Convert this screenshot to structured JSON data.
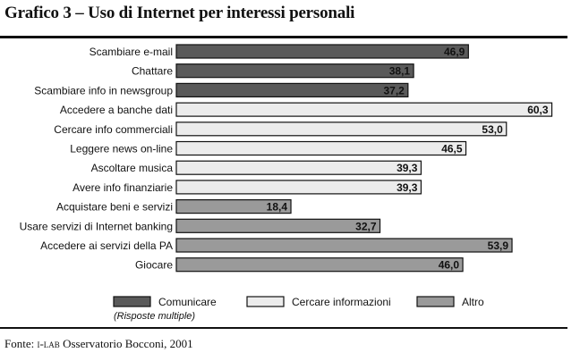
{
  "title": "Grafico 3 – Uso di Internet per interessi personali",
  "source_prefix": "Fonte: ",
  "source_org": "i-lab",
  "source_rest": " Osservatorio Bocconi, 2001",
  "colors": {
    "Comunicare": "#5a5a5a",
    "Cercare informazioni": "#ececec",
    "Altro": "#9a9a9a"
  },
  "chart_data": {
    "type": "bar",
    "orientation": "horizontal",
    "title": "",
    "xlabel": "",
    "ylabel": "",
    "xlim": [
      0,
      62
    ],
    "grid": false,
    "legend_position": "bottom",
    "legend_note": "(Risposte multiple)",
    "legend": [
      "Comunicare",
      "Cercare informazioni",
      "Altro"
    ],
    "categories": [
      "Scambiare e-mail",
      "Chattare",
      "Scambiare info in newsgroup",
      "Accedere a banche dati",
      "Cercare info commerciali",
      "Leggere news on-line",
      "Ascoltare musica",
      "Avere info finanziarie",
      "Acquistare beni e servizi",
      "Usare servizi di Internet banking",
      "Accedere ai servizi della PA",
      "Giocare"
    ],
    "values": [
      46.9,
      38.1,
      37.2,
      60.3,
      53.0,
      46.5,
      39.3,
      39.3,
      18.4,
      32.7,
      53.9,
      46.0
    ],
    "value_labels": [
      "46,9",
      "38,1",
      "37,2",
      "60,3",
      "53,0",
      "46,5",
      "39,3",
      "39,3",
      "18,4",
      "32,7",
      "53,9",
      "46,0"
    ],
    "groups": [
      "Comunicare",
      "Comunicare",
      "Comunicare",
      "Cercare informazioni",
      "Cercare informazioni",
      "Cercare informazioni",
      "Cercare informazioni",
      "Cercare informazioni",
      "Altro",
      "Altro",
      "Altro",
      "Altro"
    ]
  }
}
